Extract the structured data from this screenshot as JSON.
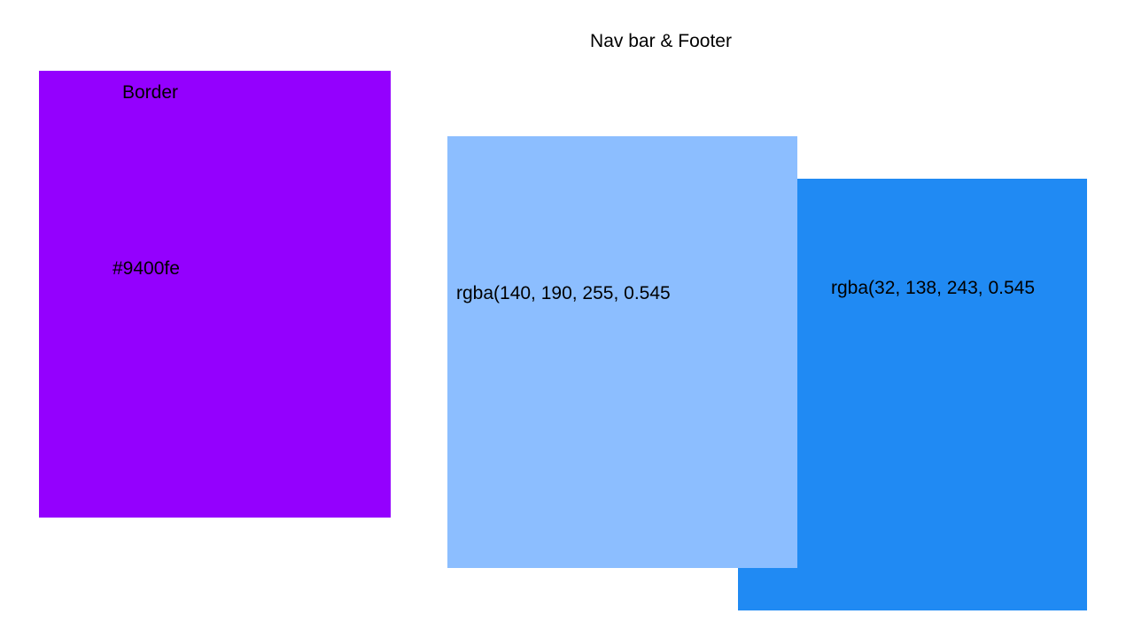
{
  "heading": "Nav bar & Footer",
  "swatches": {
    "purple": {
      "title": "Border",
      "code": "#9400fe",
      "color": "#9400fe"
    },
    "light_blue": {
      "code": "rgba(140, 190, 255, 0.545",
      "color": "#8cbeff"
    },
    "dark_blue": {
      "code": "rgba(32, 138, 243, 0.545",
      "color": "#208af3"
    }
  }
}
